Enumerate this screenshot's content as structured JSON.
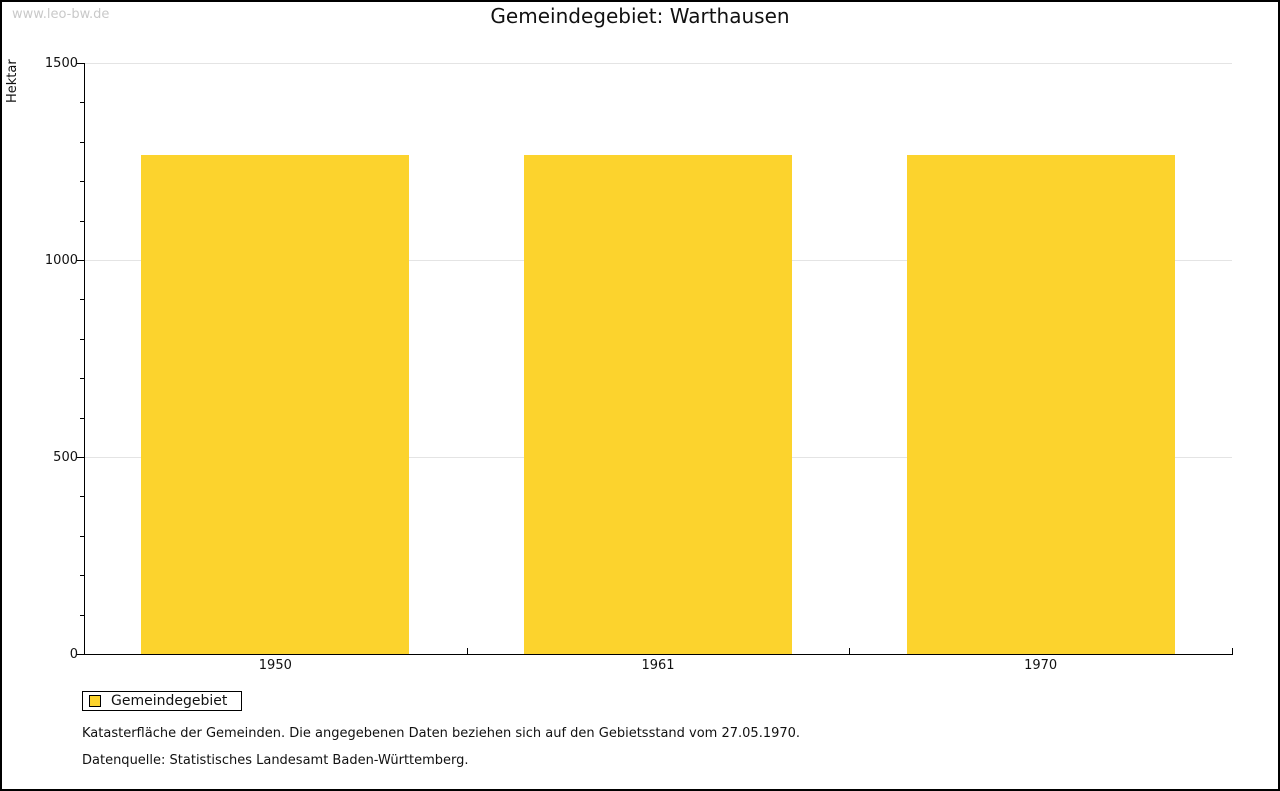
{
  "page": {
    "watermark": "www.leo-bw.de",
    "title": "Gemeindegebiet: Warthausen"
  },
  "chart_data": {
    "type": "bar",
    "title": "Gemeindegebiet: Warthausen",
    "xlabel": "",
    "ylabel": "Hektar",
    "categories": [
      "1950",
      "1961",
      "1970"
    ],
    "series": [
      {
        "name": "Gemeindegebiet",
        "values": [
          1266,
          1267,
          1267
        ]
      }
    ],
    "ylim": [
      0,
      1500
    ],
    "y_major_ticks": [
      0,
      500,
      1000,
      1500
    ],
    "y_minor_step": 100,
    "grid": "horizontal-major",
    "legend_position": "bottom-left",
    "bar_color": "#FCD32D"
  },
  "legend": {
    "items": [
      {
        "label": "Gemeindegebiet",
        "color": "#FCD32D"
      }
    ]
  },
  "footnotes": {
    "line1": "Katasterfläche der Gemeinden. Die angegebenen Daten beziehen sich auf den Gebietsstand vom 27.05.1970.",
    "line2": "Datenquelle: Statistisches Landesamt Baden-Württemberg."
  }
}
